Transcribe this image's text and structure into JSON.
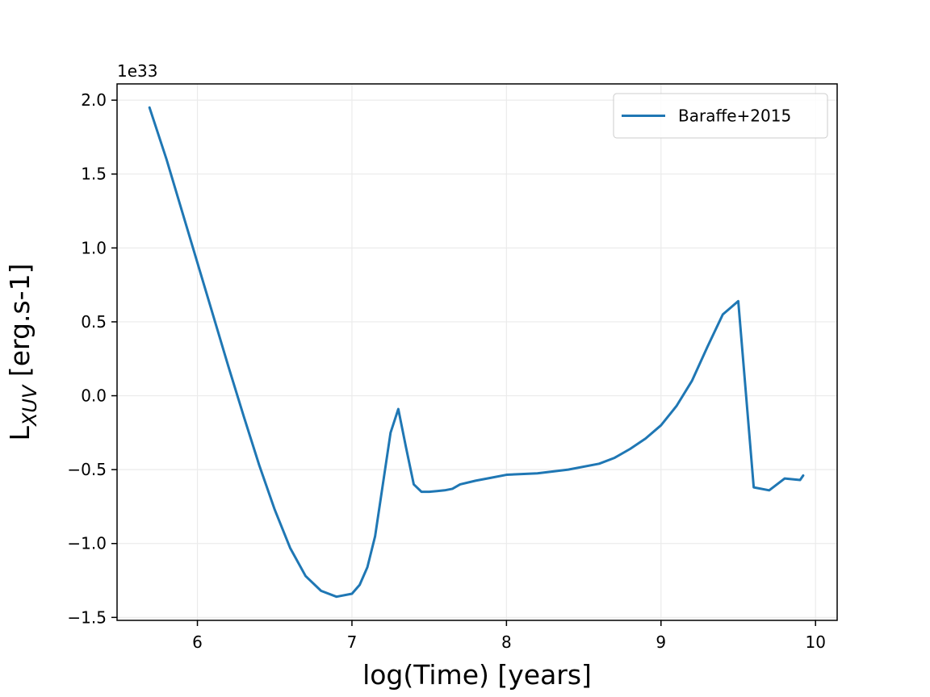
{
  "chart_data": {
    "type": "line",
    "xlabel": "log(Time) [years]",
    "ylabel": {
      "main": "L",
      "subscript": "XUV",
      "rest": " [erg.s-1]"
    },
    "offset_text": "1e33",
    "xlim": [
      5.48,
      10.14
    ],
    "ylim": [
      -1.52,
      2.11
    ],
    "x_ticks": [
      6,
      7,
      8,
      9,
      10
    ],
    "x_tick_labels": [
      "6",
      "7",
      "8",
      "9",
      "10"
    ],
    "y_ticks": [
      -1.5,
      -1.0,
      -0.5,
      0.0,
      0.5,
      1.0,
      1.5,
      2.0
    ],
    "y_tick_labels": [
      "−1.5",
      "−1.0",
      "−0.5",
      "0.0",
      "0.5",
      "1.0",
      "1.5",
      "2.0"
    ],
    "grid": true,
    "legend_position": "top-right",
    "colors": {
      "series": "#1f77b4",
      "grid": "#ebebeb",
      "axes": "#000000"
    },
    "series": [
      {
        "name": "Baraffe+2015",
        "x": [
          5.69,
          5.8,
          5.9,
          6.0,
          6.1,
          6.2,
          6.3,
          6.4,
          6.5,
          6.6,
          6.7,
          6.8,
          6.9,
          7.0,
          7.05,
          7.1,
          7.15,
          7.2,
          7.25,
          7.3,
          7.35,
          7.4,
          7.45,
          7.5,
          7.55,
          7.6,
          7.65,
          7.7,
          7.8,
          7.9,
          8.0,
          8.2,
          8.4,
          8.6,
          8.7,
          8.8,
          8.9,
          9.0,
          9.1,
          9.2,
          9.3,
          9.4,
          9.5,
          9.6,
          9.7,
          9.8,
          9.9,
          9.92
        ],
        "y": [
          1.95,
          1.6,
          1.25,
          0.9,
          0.55,
          0.2,
          -0.14,
          -0.47,
          -0.77,
          -1.03,
          -1.22,
          -1.32,
          -1.36,
          -1.34,
          -1.28,
          -1.16,
          -0.95,
          -0.6,
          -0.25,
          -0.09,
          -0.35,
          -0.6,
          -0.65,
          -0.65,
          -0.645,
          -0.64,
          -0.63,
          -0.6,
          -0.575,
          -0.555,
          -0.535,
          -0.525,
          -0.5,
          -0.46,
          -0.42,
          -0.36,
          -0.29,
          -0.2,
          -0.07,
          0.1,
          0.33,
          0.55,
          0.64,
          -0.62,
          -0.64,
          -0.56,
          -0.57,
          -0.54
        ]
      }
    ]
  }
}
